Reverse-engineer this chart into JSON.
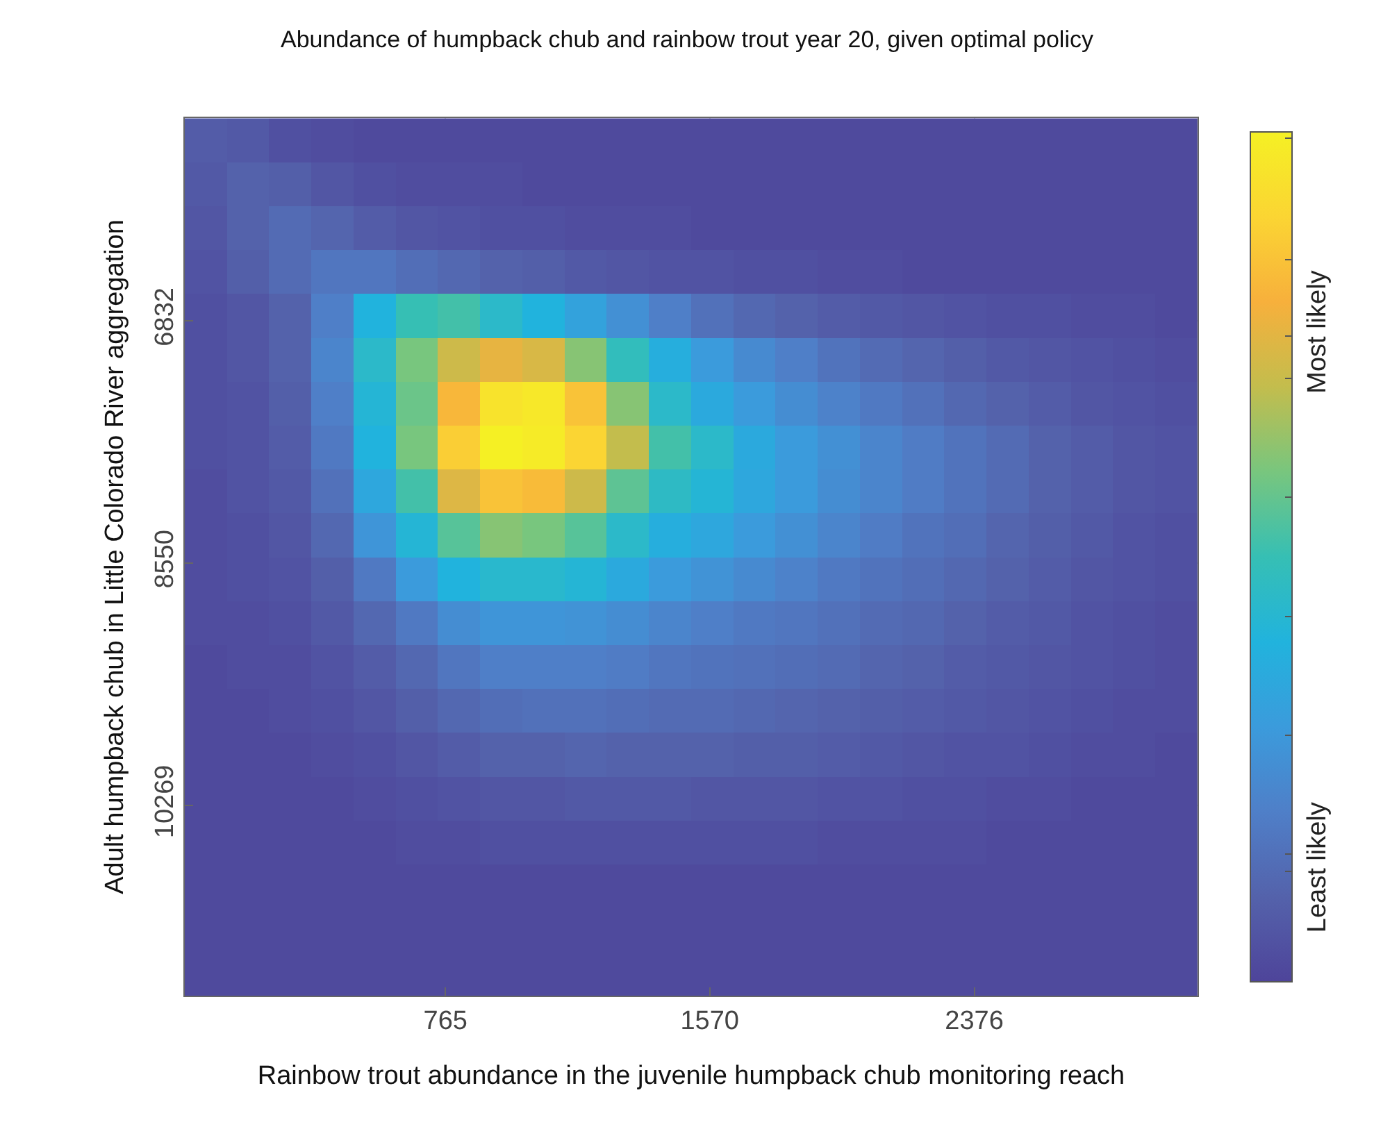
{
  "chart_data": {
    "type": "heatmap",
    "title": "Abundance of humpback chub and rainbow trout year 20, given optimal policy",
    "xlabel": "Rainbow trout abundance in the juvenile humpback chub monitoring reach",
    "ylabel": "Adult humpback chub in Little Colorado River aggregation",
    "x": [
      35,
      164,
      292,
      421,
      549,
      678,
      806,
      935,
      1063,
      1192,
      1320,
      1449,
      1577,
      1706,
      1834,
      1963,
      2091,
      2220,
      2348,
      2477,
      2605,
      2734,
      2862,
      2991
    ],
    "y": [
      5552,
      5863,
      6174,
      6485,
      6796,
      7107,
      7418,
      7729,
      8040,
      8351,
      8662,
      8973,
      9284,
      9595,
      9906,
      10217,
      10528,
      10839,
      11150,
      11461
    ],
    "xlim": [
      -29,
      3056
    ],
    "ylim": [
      11618,
      5394
    ],
    "xticks": [
      765,
      1570,
      2376
    ],
    "yticks": [
      6832,
      8550,
      10269
    ],
    "grid": true,
    "clim": [
      0,
      1
    ],
    "cticks": [
      {
        "value": 0.993,
        "label": null
      },
      {
        "value": 0.85,
        "label": null
      },
      {
        "value": 0.76,
        "label": "Most likely"
      },
      {
        "value": 0.71,
        "label": null
      },
      {
        "value": 0.57,
        "label": null
      },
      {
        "value": 0.43,
        "label": null
      },
      {
        "value": 0.29,
        "label": null
      },
      {
        "value": 0.15,
        "label": null
      },
      {
        "value": 0.13,
        "label": "Least likely"
      }
    ],
    "cells": [
      [
        0.08,
        0.07,
        0.04,
        0.03,
        0.02,
        0.02,
        0.02,
        0.02,
        0.02,
        0.02,
        0.02,
        0.02,
        0.02,
        0.02,
        0.02,
        0.02,
        0.02,
        0.02,
        0.02,
        0.02,
        0.02,
        0.02,
        0.02,
        0.02
      ],
      [
        0.07,
        0.1,
        0.09,
        0.06,
        0.04,
        0.03,
        0.03,
        0.03,
        0.02,
        0.02,
        0.02,
        0.02,
        0.02,
        0.02,
        0.02,
        0.02,
        0.02,
        0.02,
        0.02,
        0.02,
        0.02,
        0.02,
        0.02,
        0.02
      ],
      [
        0.06,
        0.1,
        0.13,
        0.11,
        0.08,
        0.06,
        0.05,
        0.04,
        0.04,
        0.03,
        0.03,
        0.03,
        0.02,
        0.02,
        0.02,
        0.02,
        0.02,
        0.02,
        0.02,
        0.02,
        0.02,
        0.02,
        0.02,
        0.02
      ],
      [
        0.05,
        0.09,
        0.13,
        0.17,
        0.17,
        0.14,
        0.12,
        0.1,
        0.09,
        0.07,
        0.06,
        0.05,
        0.05,
        0.04,
        0.04,
        0.03,
        0.03,
        0.02,
        0.02,
        0.02,
        0.02,
        0.02,
        0.02,
        0.02
      ],
      [
        0.04,
        0.06,
        0.1,
        0.2,
        0.4,
        0.5,
        0.52,
        0.45,
        0.4,
        0.33,
        0.26,
        0.2,
        0.15,
        0.12,
        0.1,
        0.08,
        0.07,
        0.06,
        0.05,
        0.04,
        0.04,
        0.03,
        0.03,
        0.02
      ],
      [
        0.04,
        0.06,
        0.1,
        0.22,
        0.45,
        0.6,
        0.72,
        0.77,
        0.74,
        0.62,
        0.48,
        0.38,
        0.3,
        0.24,
        0.2,
        0.16,
        0.13,
        0.11,
        0.09,
        0.07,
        0.06,
        0.05,
        0.04,
        0.03
      ],
      [
        0.04,
        0.05,
        0.09,
        0.2,
        0.42,
        0.58,
        0.82,
        0.95,
        0.97,
        0.85,
        0.62,
        0.45,
        0.36,
        0.3,
        0.25,
        0.21,
        0.18,
        0.15,
        0.12,
        0.1,
        0.08,
        0.06,
        0.05,
        0.04
      ],
      [
        0.04,
        0.05,
        0.08,
        0.18,
        0.4,
        0.6,
        0.88,
        1.0,
        0.98,
        0.9,
        0.7,
        0.52,
        0.45,
        0.36,
        0.3,
        0.26,
        0.22,
        0.19,
        0.16,
        0.13,
        0.1,
        0.08,
        0.06,
        0.05
      ],
      [
        0.03,
        0.05,
        0.07,
        0.15,
        0.35,
        0.52,
        0.75,
        0.85,
        0.83,
        0.72,
        0.56,
        0.46,
        0.42,
        0.35,
        0.3,
        0.25,
        0.22,
        0.19,
        0.16,
        0.13,
        0.1,
        0.08,
        0.06,
        0.05
      ],
      [
        0.03,
        0.04,
        0.06,
        0.12,
        0.28,
        0.42,
        0.55,
        0.62,
        0.6,
        0.55,
        0.45,
        0.38,
        0.35,
        0.3,
        0.26,
        0.22,
        0.19,
        0.16,
        0.14,
        0.11,
        0.09,
        0.07,
        0.05,
        0.04
      ],
      [
        0.03,
        0.04,
        0.05,
        0.09,
        0.18,
        0.3,
        0.4,
        0.44,
        0.44,
        0.42,
        0.36,
        0.3,
        0.27,
        0.24,
        0.21,
        0.18,
        0.16,
        0.14,
        0.12,
        0.1,
        0.08,
        0.06,
        0.05,
        0.04
      ],
      [
        0.03,
        0.03,
        0.04,
        0.07,
        0.12,
        0.18,
        0.25,
        0.28,
        0.28,
        0.27,
        0.25,
        0.22,
        0.2,
        0.18,
        0.17,
        0.15,
        0.13,
        0.12,
        0.1,
        0.08,
        0.07,
        0.05,
        0.04,
        0.03
      ],
      [
        0.02,
        0.03,
        0.03,
        0.05,
        0.08,
        0.12,
        0.17,
        0.2,
        0.2,
        0.2,
        0.19,
        0.17,
        0.16,
        0.15,
        0.14,
        0.13,
        0.11,
        0.1,
        0.08,
        0.07,
        0.06,
        0.05,
        0.04,
        0.03
      ],
      [
        0.02,
        0.02,
        0.03,
        0.04,
        0.06,
        0.09,
        0.12,
        0.14,
        0.15,
        0.15,
        0.14,
        0.13,
        0.13,
        0.12,
        0.11,
        0.1,
        0.09,
        0.08,
        0.07,
        0.06,
        0.05,
        0.04,
        0.03,
        0.03
      ],
      [
        0.02,
        0.02,
        0.02,
        0.03,
        0.04,
        0.06,
        0.08,
        0.1,
        0.1,
        0.11,
        0.1,
        0.1,
        0.1,
        0.09,
        0.09,
        0.08,
        0.07,
        0.06,
        0.05,
        0.05,
        0.04,
        0.03,
        0.03,
        0.02
      ],
      [
        0.02,
        0.02,
        0.02,
        0.02,
        0.03,
        0.04,
        0.05,
        0.06,
        0.06,
        0.07,
        0.07,
        0.07,
        0.06,
        0.06,
        0.06,
        0.05,
        0.05,
        0.04,
        0.04,
        0.03,
        0.03,
        0.02,
        0.02,
        0.02
      ],
      [
        0.02,
        0.02,
        0.02,
        0.02,
        0.02,
        0.03,
        0.03,
        0.04,
        0.04,
        0.04,
        0.04,
        0.04,
        0.04,
        0.04,
        0.04,
        0.03,
        0.03,
        0.03,
        0.03,
        0.02,
        0.02,
        0.02,
        0.02,
        0.02
      ],
      [
        0.02,
        0.02,
        0.02,
        0.02,
        0.02,
        0.02,
        0.02,
        0.02,
        0.02,
        0.02,
        0.02,
        0.02,
        0.02,
        0.02,
        0.02,
        0.02,
        0.02,
        0.02,
        0.02,
        0.02,
        0.02,
        0.02,
        0.02,
        0.02
      ],
      [
        0.02,
        0.02,
        0.02,
        0.02,
        0.02,
        0.02,
        0.02,
        0.02,
        0.02,
        0.02,
        0.02,
        0.02,
        0.02,
        0.02,
        0.02,
        0.02,
        0.02,
        0.02,
        0.02,
        0.02,
        0.02,
        0.02,
        0.02,
        0.02
      ],
      [
        0.02,
        0.02,
        0.02,
        0.02,
        0.02,
        0.02,
        0.02,
        0.02,
        0.02,
        0.02,
        0.02,
        0.02,
        0.02,
        0.02,
        0.02,
        0.02,
        0.02,
        0.02,
        0.02,
        0.02,
        0.02,
        0.02,
        0.02,
        0.02
      ]
    ]
  }
}
